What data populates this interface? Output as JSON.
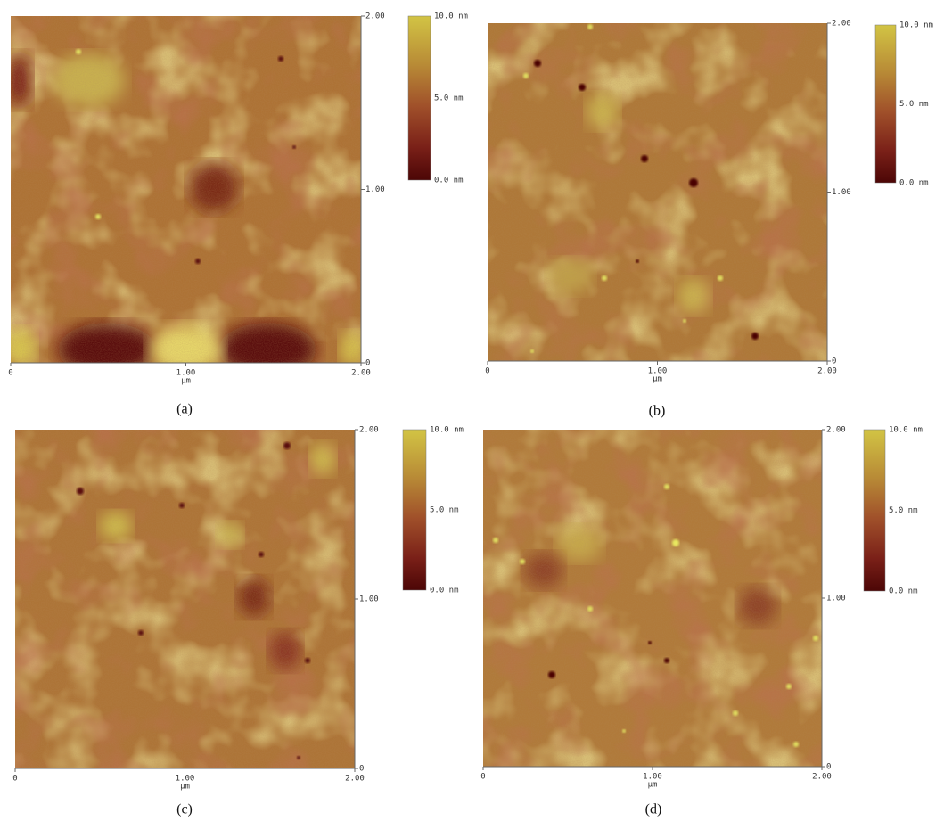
{
  "panels": [
    {
      "caption": "(a)",
      "x_ticks": [
        "0",
        "1.00",
        "2.00"
      ],
      "x_unit": "µm",
      "y_ticks": [
        "2.00",
        "1.00",
        "0"
      ],
      "colorbar": [
        "10.0 nm",
        "5.0 nm",
        "0.0 nm"
      ]
    },
    {
      "caption": "(b)",
      "x_ticks": [
        "0",
        "1.00",
        "2.00"
      ],
      "x_unit": "µm",
      "y_ticks": [
        "2.00",
        "1.00",
        "0"
      ],
      "colorbar": [
        "10.0 nm",
        "5.0 nm",
        "0.0 nm"
      ]
    },
    {
      "caption": "(c)",
      "x_ticks": [
        "0",
        "1.00",
        "2.00"
      ],
      "x_unit": "µm",
      "y_ticks": [
        "2.00",
        "1.00",
        "0"
      ],
      "colorbar": [
        "10.0 nm",
        "5.0 nm",
        "0.0 nm"
      ]
    },
    {
      "caption": "(d)",
      "x_ticks": [
        "0",
        "1.00",
        "2.00"
      ],
      "x_unit": "µm",
      "y_ticks": [
        "2.00",
        "1.00",
        "0"
      ],
      "colorbar": [
        "10.0 nm",
        "5.0 nm",
        "0.0 nm"
      ]
    }
  ]
}
